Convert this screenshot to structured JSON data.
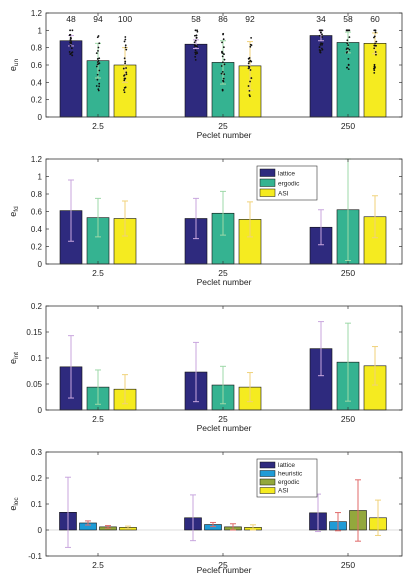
{
  "chart_data": [
    {
      "type": "bar",
      "ylabel": "e_un",
      "xlabel": "Peclet number",
      "categories": [
        "2.5",
        "25",
        "250"
      ],
      "ylim": [
        0,
        1.2
      ],
      "yticks": [
        0,
        0.2,
        0.4,
        0.6,
        0.8,
        1,
        1.2
      ],
      "ytick_labels": [
        "0",
        "0.2",
        "0.4",
        "0.6",
        "0.8",
        "1",
        "1.2"
      ],
      "grid": false,
      "legend": null,
      "series": [
        {
          "values": [
            0.88,
            0.84,
            0.94
          ],
          "err": [
            0.06,
            0.05,
            0.06
          ],
          "counts": [
            "48",
            "58",
            "34"
          ],
          "color": "#2e2a7e"
        },
        {
          "values": [
            0.65,
            0.63,
            0.86
          ],
          "err": [
            0.2,
            0.25,
            0.12
          ],
          "counts": [
            "94",
            "86",
            "58"
          ],
          "color": "#35b391"
        },
        {
          "values": [
            0.6,
            0.59,
            0.85
          ],
          "err": [
            0.2,
            0.28,
            0.12
          ],
          "counts": [
            "100",
            "92",
            "60"
          ],
          "color": "#f5eb20"
        }
      ]
    },
    {
      "type": "bar",
      "ylabel": "e_fd",
      "xlabel": "Peclet number",
      "categories": [
        "2.5",
        "25",
        "250"
      ],
      "ylim": [
        0,
        1.2
      ],
      "yticks": [
        0,
        0.2,
        0.4,
        0.6,
        0.8,
        1,
        1.2
      ],
      "ytick_labels": [
        "0",
        "0.2",
        "0.4",
        "0.6",
        "0.8",
        "1",
        "1.2"
      ],
      "grid": false,
      "legend": "top-center",
      "series": [
        {
          "name": "lattice",
          "values": [
            0.61,
            0.52,
            0.42
          ],
          "err": [
            0.35,
            0.23,
            0.2
          ],
          "color": "#2e2a7e"
        },
        {
          "name": "ergodic",
          "values": [
            0.53,
            0.58,
            0.62
          ],
          "err": [
            0.22,
            0.25,
            0.58
          ],
          "color": "#35b391"
        },
        {
          "name": "ASI",
          "values": [
            0.52,
            0.51,
            0.54
          ],
          "err": [
            0.2,
            0.2,
            0.24
          ],
          "color": "#f5eb20"
        }
      ]
    },
    {
      "type": "bar",
      "ylabel": "e_int",
      "xlabel": "Peclet number",
      "categories": [
        "2.5",
        "25",
        "250"
      ],
      "ylim": [
        0,
        0.2
      ],
      "yticks": [
        0,
        0.05,
        0.1,
        0.15,
        0.2
      ],
      "ytick_labels": [
        "0",
        "0.05",
        "0.1",
        "0.15",
        "0.2"
      ],
      "grid": false,
      "legend": null,
      "series": [
        {
          "values": [
            0.083,
            0.073,
            0.118
          ],
          "err": [
            0.06,
            0.057,
            0.052
          ],
          "color": "#2e2a7e"
        },
        {
          "values": [
            0.044,
            0.048,
            0.092
          ],
          "err": [
            0.033,
            0.036,
            0.075
          ],
          "color": "#35b391"
        },
        {
          "values": [
            0.04,
            0.044,
            0.085
          ],
          "err": [
            0.028,
            0.028,
            0.037
          ],
          "color": "#f5eb20"
        }
      ]
    },
    {
      "type": "bar",
      "ylabel": "e_loc",
      "xlabel": "Peclet number",
      "categories": [
        "2.5",
        "25",
        "250"
      ],
      "ylim": [
        -0.1,
        0.3
      ],
      "yticks": [
        -0.1,
        0,
        0.1,
        0.2,
        0.3
      ],
      "ytick_labels": [
        "-0.1",
        "0",
        "0.1",
        "0.2",
        "0.3"
      ],
      "grid": false,
      "legend": "top-center",
      "series": [
        {
          "name": "lattice",
          "values": [
            0.068,
            0.047,
            0.066
          ],
          "err": [
            0.135,
            0.088,
            0.072
          ],
          "color": "#2e2a7e"
        },
        {
          "name": "heuristic",
          "values": [
            0.027,
            0.021,
            0.032
          ],
          "err": [
            0.008,
            0.008,
            0.035
          ],
          "color": "#1f9bd6"
        },
        {
          "name": "ergodic",
          "values": [
            0.012,
            0.012,
            0.075
          ],
          "err": [
            0.005,
            0.012,
            0.118
          ],
          "color": "#93a83c"
        },
        {
          "name": "ASI",
          "values": [
            0.01,
            0.01,
            0.047
          ],
          "err": [
            0.005,
            0.01,
            0.068
          ],
          "color": "#f5eb20"
        }
      ]
    }
  ]
}
